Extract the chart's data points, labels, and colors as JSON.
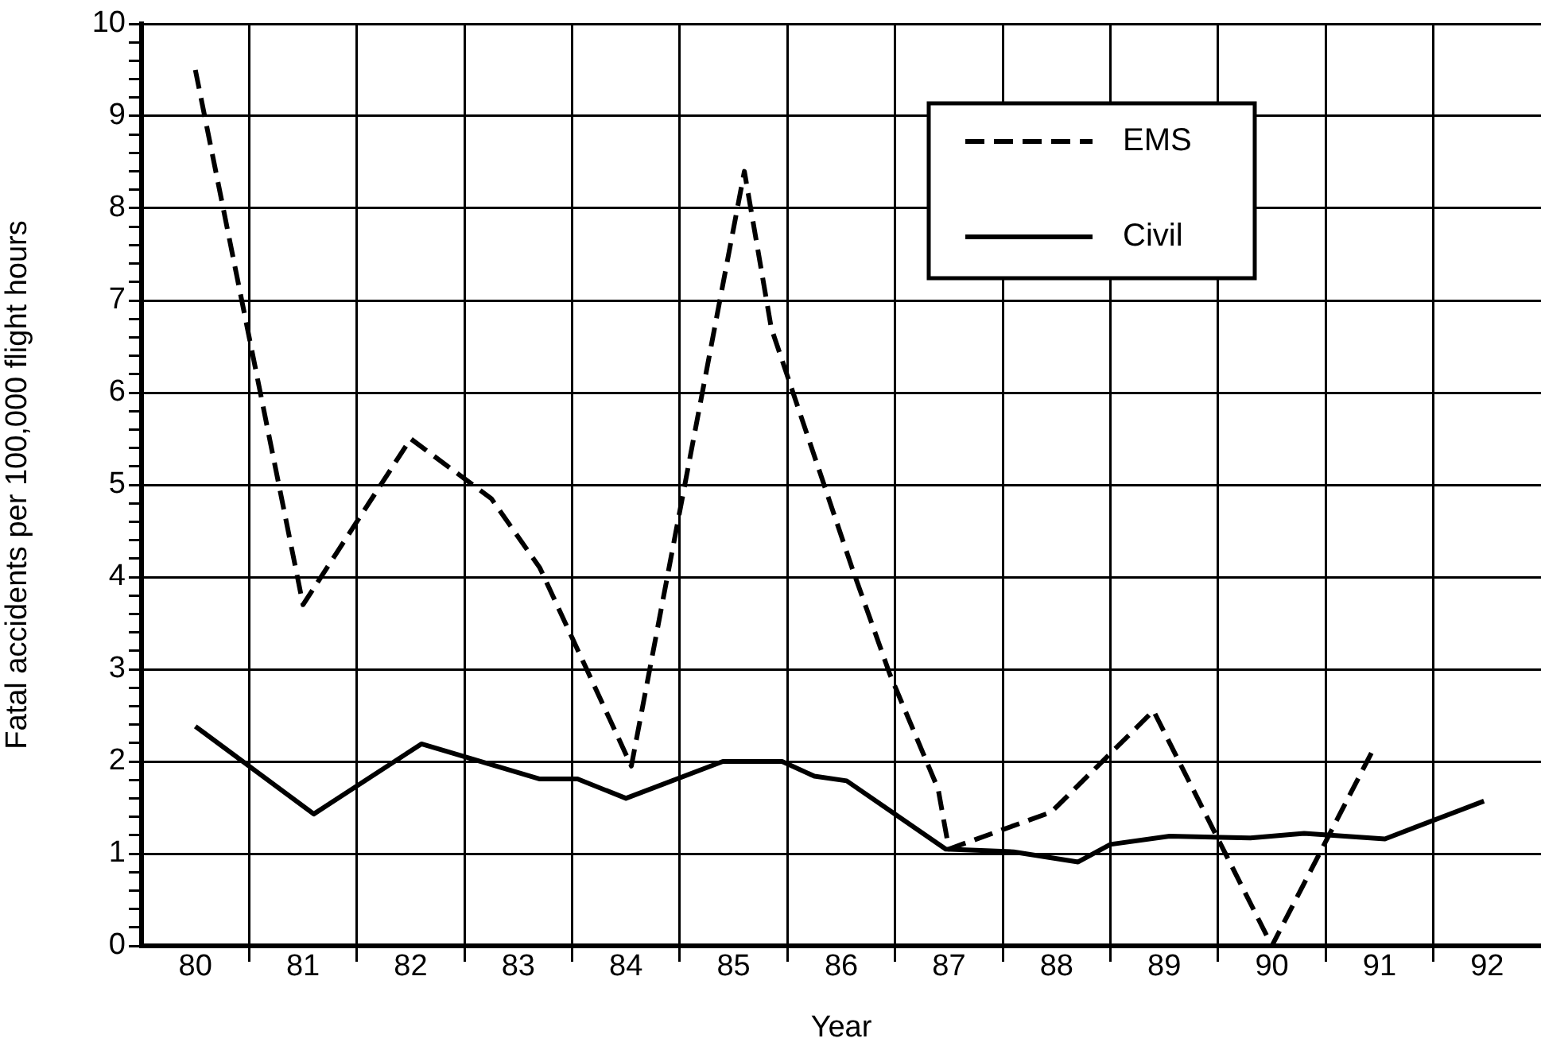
{
  "chart_data": {
    "type": "line",
    "xlabel": "Year",
    "ylabel": "Fatal accidents per 100,000 flight hours",
    "xlim": [
      79.5,
      92.5
    ],
    "xticks": [
      80,
      {
        "value": 80.5,
        "label": null
      },
      81,
      {
        "value": 81.5,
        "label": null
      },
      82,
      {
        "value": 82.5,
        "label": null
      },
      83,
      {
        "value": 83.5,
        "label": null
      },
      84,
      {
        "value": 84.5,
        "label": null
      },
      85,
      {
        "value": 85.5,
        "label": null
      },
      86,
      {
        "value": 86.5,
        "label": null
      },
      87,
      {
        "value": 87.5,
        "label": null
      },
      88,
      {
        "value": 88.5,
        "label": null
      },
      89,
      {
        "value": 89.5,
        "label": null
      },
      90,
      {
        "value": 90.5,
        "label": null
      },
      91,
      {
        "value": 91.5,
        "label": null
      },
      92
    ],
    "ylim": [
      0,
      10
    ],
    "yticks": [
      0,
      {
        "value": 0.2,
        "label": null
      },
      {
        "value": 0.4,
        "label": null
      },
      {
        "value": 0.6,
        "label": null
      },
      {
        "value": 0.8,
        "label": null
      },
      1,
      {
        "value": 1.2,
        "label": null
      },
      {
        "value": 1.4,
        "label": null
      },
      {
        "value": 1.6,
        "label": null
      },
      {
        "value": 1.8,
        "label": null
      },
      2,
      {
        "value": 2.2,
        "label": null
      },
      {
        "value": 2.4,
        "label": null
      },
      {
        "value": 2.6,
        "label": null
      },
      {
        "value": 2.8,
        "label": null
      },
      3,
      {
        "value": 3.2,
        "label": null
      },
      {
        "value": 3.4,
        "label": null
      },
      {
        "value": 3.6,
        "label": null
      },
      {
        "value": 3.8,
        "label": null
      },
      4,
      {
        "value": 4.2,
        "label": null
      },
      {
        "value": 4.4,
        "label": null
      },
      {
        "value": 4.6,
        "label": null
      },
      {
        "value": 4.8,
        "label": null
      },
      5,
      {
        "value": 5.2,
        "label": null
      },
      {
        "value": 5.4,
        "label": null
      },
      {
        "value": 5.6,
        "label": null
      },
      {
        "value": 5.8,
        "label": null
      },
      6,
      {
        "value": 6.2,
        "label": null
      },
      {
        "value": 6.4,
        "label": null
      },
      {
        "value": 6.6,
        "label": null
      },
      {
        "value": 6.8,
        "label": null
      },
      7,
      {
        "value": 7.2,
        "label": null
      },
      {
        "value": 7.4,
        "label": null
      },
      {
        "value": 7.6,
        "label": null
      },
      {
        "value": 7.8,
        "label": null
      },
      8,
      {
        "value": 8.2,
        "label": null
      },
      {
        "value": 8.4,
        "label": null
      },
      {
        "value": 8.6,
        "label": null
      },
      {
        "value": 8.8,
        "label": null
      },
      9,
      {
        "value": 9.2,
        "label": null
      },
      {
        "value": 9.4,
        "label": null
      },
      {
        "value": 9.6,
        "label": null
      },
      {
        "value": 9.8,
        "label": null
      },
      10
    ],
    "grid": true,
    "legend": "top right",
    "marker": "none",
    "series": [
      {
        "name": "EMS",
        "color": "#000000",
        "line_style": "dashed",
        "x": [
          80,
          81,
          82,
          82.75,
          83.2,
          84.05,
          85.1,
          85.35,
          86.1,
          86.45,
          86.9,
          87,
          87.95,
          88.9,
          90,
          90.95
        ],
        "values": [
          9.5,
          3.7,
          5.5,
          4.85,
          4.1,
          1.95,
          8.4,
          6.7,
          4.1,
          2.95,
          1.7,
          1.05,
          1.45,
          2.55,
          0,
          2.15
        ]
      },
      {
        "name": "Civil",
        "color": "#000000",
        "line_style": "solid",
        "x": [
          80,
          81.1,
          82.1,
          83.2,
          83.55,
          84,
          84.9,
          85.45,
          85.75,
          86.05,
          86.97,
          87.6,
          88.2,
          88.5,
          89.05,
          89.8,
          90.3,
          91.05,
          91.97
        ],
        "values": [
          2.38,
          1.43,
          2.19,
          1.81,
          1.81,
          1.6,
          2.0,
          2.0,
          1.84,
          1.79,
          1.05,
          1.02,
          0.91,
          1.1,
          1.19,
          1.17,
          1.22,
          1.16,
          1.57
        ]
      }
    ]
  }
}
